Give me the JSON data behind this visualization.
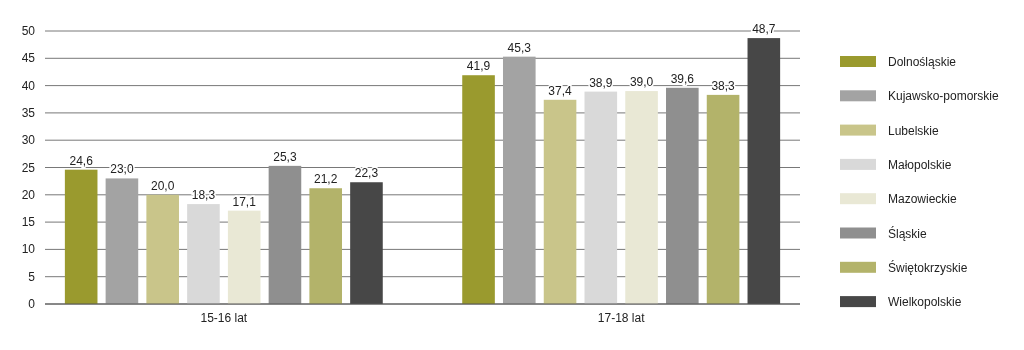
{
  "chart_data": {
    "type": "bar",
    "categories": [
      "15-16 lat",
      "17-18 lat"
    ],
    "series": [
      {
        "name": "Dolnośląskie",
        "color": "#9a9a2e",
        "values": [
          24.6,
          41.9
        ],
        "value_labels": [
          "24,6",
          "41,9"
        ]
      },
      {
        "name": "Kujawsko-pomorskie",
        "color": "#a3a3a3",
        "values": [
          23.0,
          45.3
        ],
        "value_labels": [
          "23,0",
          "45,3"
        ]
      },
      {
        "name": "Lubelskie",
        "color": "#c9c58a",
        "values": [
          20.0,
          37.4
        ],
        "value_labels": [
          "20,0",
          "37,4"
        ]
      },
      {
        "name": "Małopolskie",
        "color": "#d9d9d9",
        "values": [
          18.3,
          38.9
        ],
        "value_labels": [
          "18,3",
          "38,9"
        ]
      },
      {
        "name": "Mazowieckie",
        "color": "#e9e8d5",
        "values": [
          17.1,
          39.0
        ],
        "value_labels": [
          "17,1",
          "39,0"
        ]
      },
      {
        "name": "Śląskie",
        "color": "#8f8f8f",
        "values": [
          25.3,
          39.6
        ],
        "value_labels": [
          "25,3",
          "39,6"
        ]
      },
      {
        "name": "Świętokrzyskie",
        "color": "#b3b36a",
        "values": [
          21.2,
          38.3
        ],
        "value_labels": [
          "21,2",
          "38,3"
        ]
      },
      {
        "name": "Wielkopolskie",
        "color": "#474747",
        "values": [
          22.3,
          48.7
        ],
        "value_labels": [
          "22,3",
          "48,7"
        ]
      }
    ],
    "ylim": [
      0,
      50
    ],
    "yticks": [
      0,
      5,
      10,
      15,
      20,
      25,
      30,
      35,
      40,
      45,
      50
    ],
    "grid": "y",
    "legend": "right"
  }
}
